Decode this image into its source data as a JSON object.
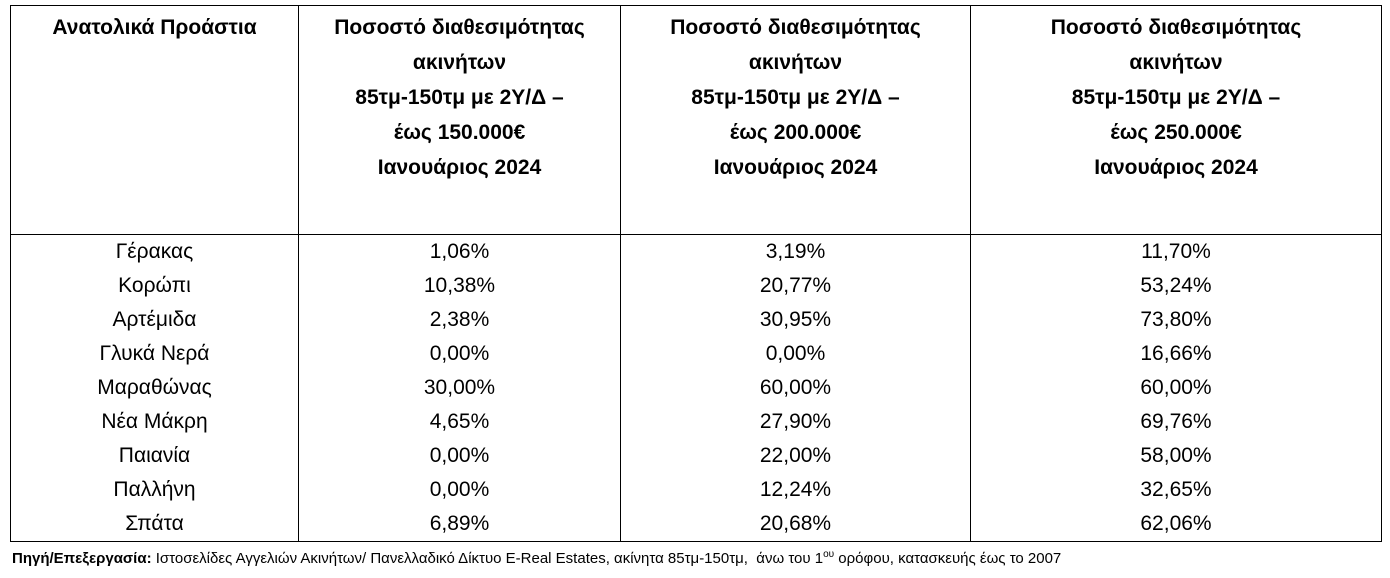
{
  "table": {
    "columns": [
      [
        "Ανατολικά Προάστια"
      ],
      [
        "Ποσοστό διαθεσιμότητας",
        "ακινήτων",
        "85τμ-150τμ με 2Υ/Δ –",
        "έως 150.000€",
        "Ιανουάριος 2024"
      ],
      [
        "Ποσοστό διαθεσιμότητας",
        "ακινήτων",
        "85τμ-150τμ με 2Υ/Δ –",
        "έως 200.000€",
        "Ιανουάριος 2024"
      ],
      [
        "Ποσοστό διαθεσιμότητας",
        "ακινήτων",
        "85τμ-150τμ με 2Υ/Δ –",
        "έως 250.000€",
        "Ιανουάριος 2024"
      ]
    ],
    "rows": [
      [
        "Γέρακας",
        "1,06%",
        "3,19%",
        "11,70%"
      ],
      [
        "Κορώπι",
        "10,38%",
        "20,77%",
        "53,24%"
      ],
      [
        "Αρτέμιδα",
        "2,38%",
        "30,95%",
        "73,80%"
      ],
      [
        "Γλυκά Νερά",
        "0,00%",
        "0,00%",
        "16,66%"
      ],
      [
        "Μαραθώνας",
        "30,00%",
        "60,00%",
        "60,00%"
      ],
      [
        "Νέα Μάκρη",
        "4,65%",
        "27,90%",
        "69,76%"
      ],
      [
        "Παιανία",
        "0,00%",
        "22,00%",
        "58,00%"
      ],
      [
        "Παλλήνη",
        "0,00%",
        "12,24%",
        "32,65%"
      ],
      [
        "Σπάτα",
        "6,89%",
        "20,68%",
        "62,06%"
      ]
    ]
  },
  "footnote": {
    "label": "Πηγή/Επεξεργασία:",
    "text": " Ιστοσελίδες Αγγελιών Ακινήτων/ Πανελλαδικό Δίκτυο E-Real Estates, ακίνητα 85τμ-150τμ,  άνω του 1",
    "superscript": "ου",
    "text_end": " ορόφου, κατασκευής έως το 2007"
  }
}
